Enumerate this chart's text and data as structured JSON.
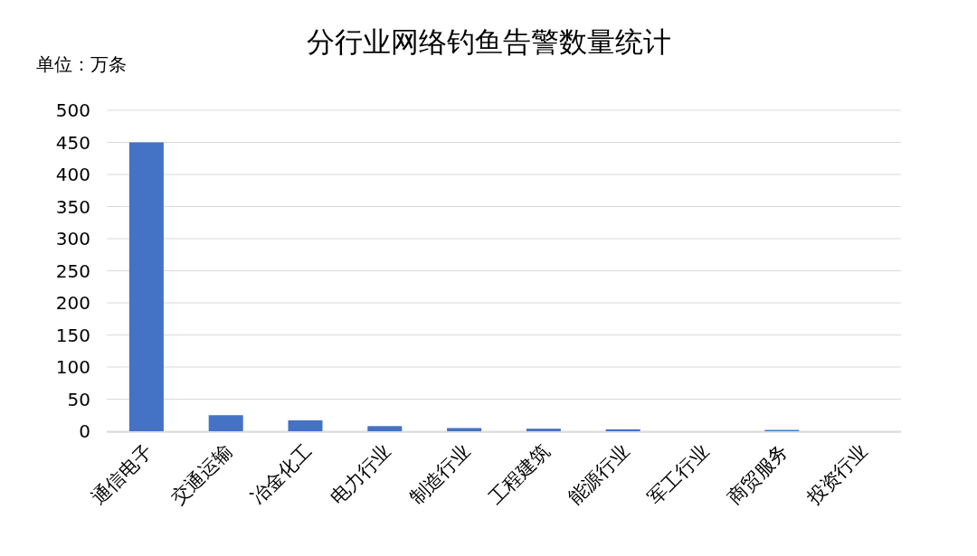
{
  "chart_data": {
    "type": "bar",
    "title": "分行业网络钓鱼告警数量统计",
    "ylabel": "单位：万条",
    "categories": [
      "通信电子",
      "交通运输",
      "冶金化工",
      "电力行业",
      "制造行业",
      "工程建筑",
      "能源行业",
      "军工行业",
      "商贸服务",
      "投资行业"
    ],
    "values": [
      450,
      25,
      17,
      8,
      5,
      4,
      3,
      0,
      2,
      0
    ],
    "color": "#4472c4",
    "ylim": [
      0,
      500
    ],
    "yticks": [
      0,
      50,
      100,
      150,
      200,
      250,
      300,
      350,
      400,
      450,
      500
    ],
    "grid": "y"
  }
}
